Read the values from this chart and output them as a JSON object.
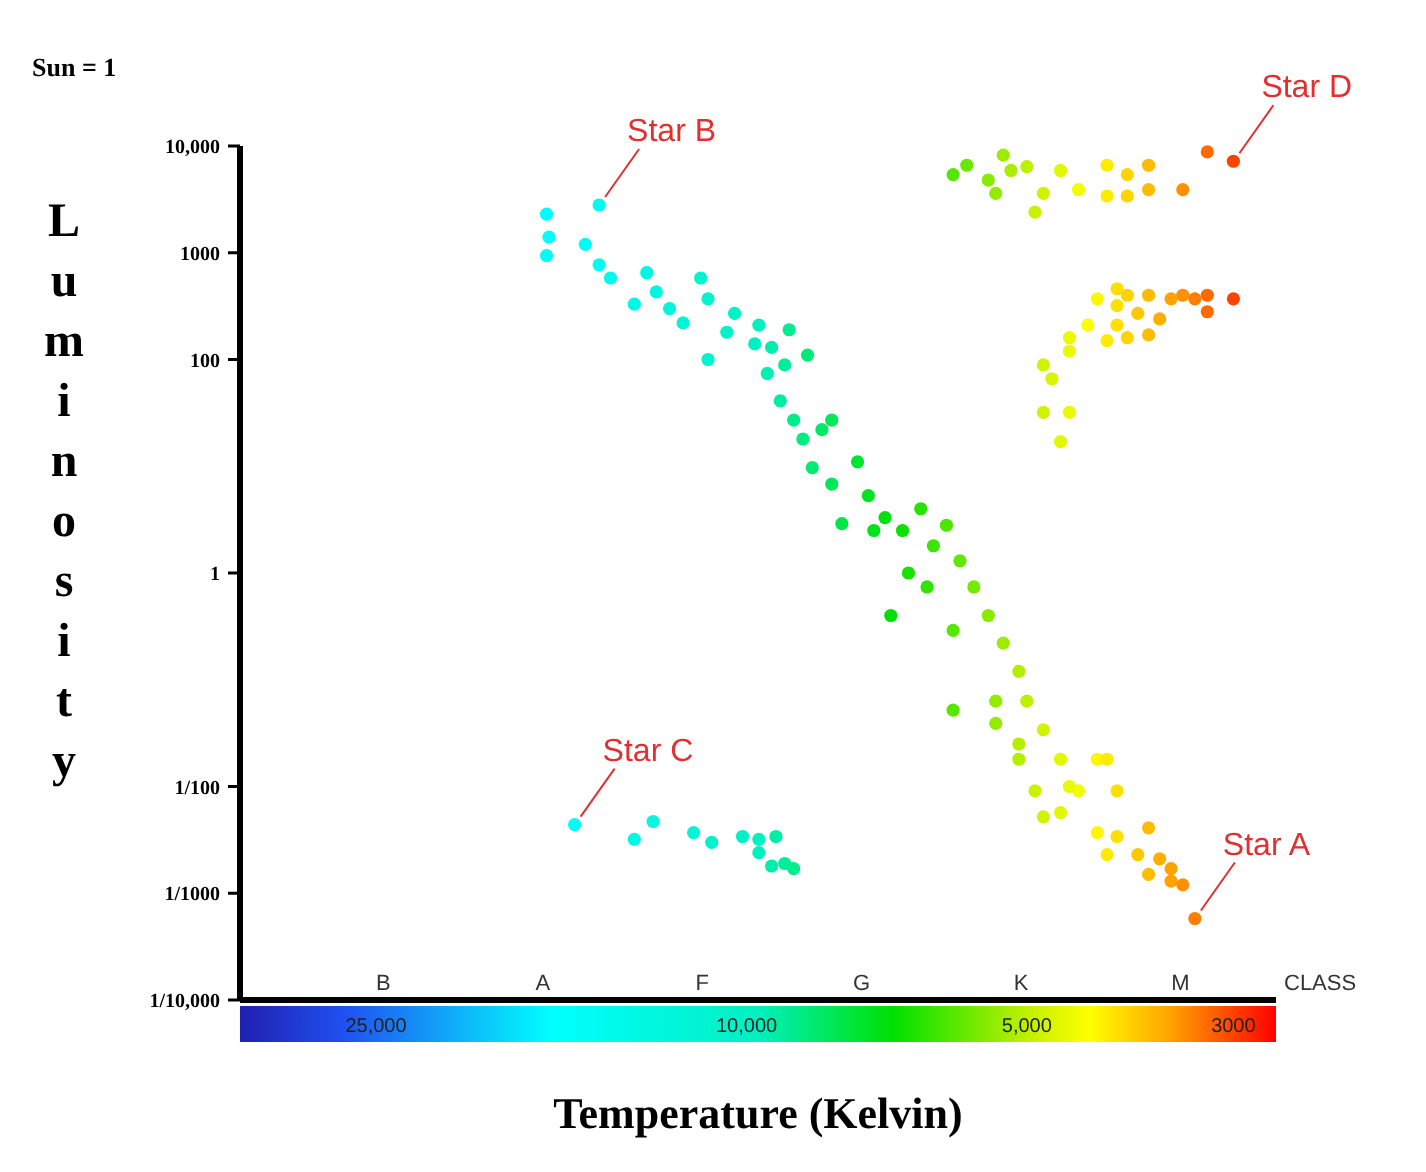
{
  "chart_data": {
    "type": "scatter",
    "xlabel": "Temperature (Kelvin)",
    "ylabel": "Luminosity",
    "log": "xy",
    "marker": "circle",
    "annotations": [
      "Sun = 1",
      "B",
      "A",
      "F",
      "G",
      "K",
      "M",
      "CLASS",
      {
        "text": "Star B",
        "x": 14400,
        "y": 2800
      },
      {
        "text": "Star D",
        "x": 3000,
        "y": 7200
      },
      {
        "text": "Star C",
        "x": 15300,
        "y": 0.0044
      },
      {
        "text": "Star A",
        "x": 3300,
        "y": 0.00058
      }
    ],
    "xlim": [
      35000,
      2700
    ],
    "xticks": [
      {
        "value": 25000,
        "label": "25,000"
      },
      {
        "value": 10000,
        "label": "10,000"
      },
      {
        "value": 5000,
        "label": "5,000"
      },
      3000
    ],
    "ylim": [
      0.0001,
      10000
    ],
    "yticks": [
      {
        "value": 10000,
        "label": "10,000"
      },
      1000,
      100,
      1,
      {
        "value": 0.01,
        "label": "1/100"
      },
      {
        "value": 0.001,
        "label": "1/1000"
      },
      {
        "value": 0.0001,
        "label": "1/10,000"
      }
    ],
    "x": [
      14400,
      16400,
      16300,
      16400,
      14900,
      14400,
      14000,
      12800,
      11200,
      12500,
      13200,
      12100,
      11000,
      10300,
      11700,
      10500,
      9700,
      9000,
      9800,
      11000,
      9400,
      9500,
      9100,
      8600,
      9200,
      8900,
      8700,
      8300,
      8100,
      8500,
      8100,
      7600,
      7900,
      7400,
      7300,
      7100,
      6800,
      6500,
      6300,
      6100,
      6700,
      6400,
      7000,
      5900,
      5700,
      5500,
      6000,
      5300,
      5100,
      5400,
      5000,
      4800,
      5100,
      4600,
      6000,
      5400,
      5100,
      4900,
      4800,
      4600,
      4400,
      4200,
      4100,
      4000,
      4200,
      4000,
      3700,
      4100,
      3800,
      3600,
      3500,
      3700,
      3500,
      3400,
      3300,
      4500,
      6000,
      5800,
      5500,
      5300,
      5200,
      5400,
      5000,
      4800,
      4900,
      4600,
      4400,
      4100,
      4100,
      3900,
      3700,
      3900,
      3700,
      3400,
      3200,
      3000,
      4200,
      4000,
      4000,
      3900,
      3700,
      3500,
      3400,
      3300,
      3200,
      3000,
      3200,
      3800,
      3600,
      4300,
      4500,
      4100,
      4000,
      3900,
      3700,
      4500,
      4800,
      4700,
      4800,
      4500,
      4600,
      15300,
      13200,
      12600,
      11400,
      10900,
      10100,
      9700,
      9300,
      9700,
      9400,
      9100,
      8900
    ],
    "values": [
      2800,
      2300,
      1400,
      940,
      1200,
      770,
      580,
      650,
      580,
      430,
      330,
      300,
      370,
      270,
      220,
      180,
      210,
      190,
      140,
      100,
      130,
      74,
      89,
      110,
      41,
      27,
      18,
      22,
      27,
      9.7,
      6.8,
      11,
      2.9,
      5.3,
      2.5,
      3.3,
      2.5,
      4.0,
      1.8,
      2.8,
      1,
      0.74,
      0.4,
      1.3,
      0.74,
      0.4,
      0.29,
      0.22,
      0.12,
      0.063,
      0.063,
      0.034,
      0.025,
      0.018,
      0.052,
      0.039,
      0.018,
      0.0091,
      0.0052,
      0.0057,
      0.0091,
      0.018,
      0.018,
      0.0091,
      0.0037,
      0.0034,
      0.0041,
      0.0023,
      0.0023,
      0.0021,
      0.0017,
      0.0015,
      0.0013,
      0.0012,
      0.00058,
      0.01,
      5400,
      6600,
      4800,
      8200,
      5900,
      3600,
      6400,
      3600,
      2400,
      5900,
      3900,
      6600,
      3400,
      5400,
      6600,
      3400,
      3900,
      3900,
      8800,
      7200,
      370,
      460,
      320,
      400,
      400,
      370,
      400,
      370,
      400,
      370,
      280,
      270,
      240,
      210,
      160,
      150,
      210,
      160,
      170,
      120,
      89,
      66,
      32,
      32,
      17,
      0.0044,
      0.0032,
      0.0047,
      0.0037,
      0.003,
      0.0034,
      0.0032,
      0.0034,
      0.0024,
      0.0018,
      0.0019,
      0.0017
    ]
  }
}
